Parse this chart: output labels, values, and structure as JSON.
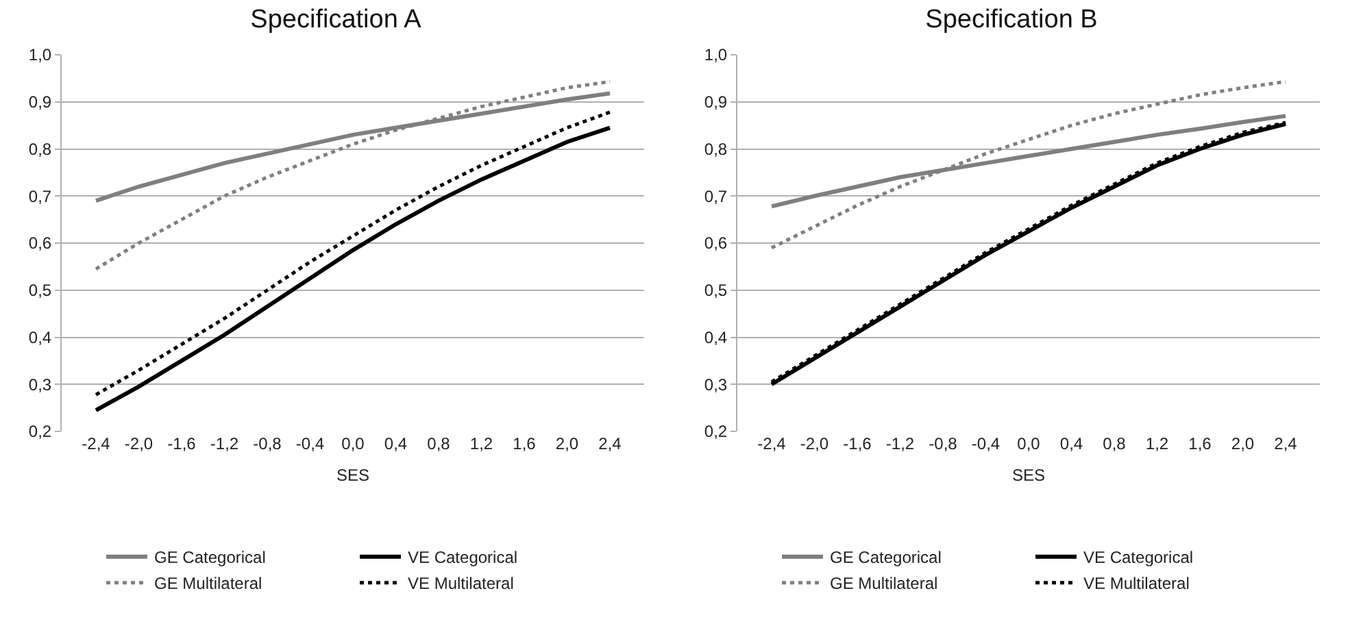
{
  "chart_data": [
    {
      "type": "line",
      "title": "Specification A",
      "xlabel": "SES",
      "categories": [
        "-2,4",
        "-2,0",
        "-1,6",
        "-1,2",
        "-0,8",
        "-0,4",
        "0,0",
        "0,4",
        "0,8",
        "1,2",
        "1,6",
        "2,0",
        "2,4"
      ],
      "series": [
        {
          "name": "GE Categorical",
          "color": "#7f7f7f",
          "line_style": "solid",
          "values": [
            0.69,
            0.72,
            0.745,
            0.77,
            0.79,
            0.81,
            0.83,
            0.845,
            0.86,
            0.875,
            0.89,
            0.905,
            0.918
          ]
        },
        {
          "name": "VE Categorical",
          "color": "#000000",
          "line_style": "solid",
          "values": [
            0.245,
            0.295,
            0.35,
            0.405,
            0.465,
            0.525,
            0.585,
            0.64,
            0.69,
            0.735,
            0.775,
            0.815,
            0.845
          ]
        },
        {
          "name": "GE Multilateral",
          "color": "#7f7f7f",
          "line_style": "dotted",
          "values": [
            0.545,
            0.6,
            0.65,
            0.7,
            0.74,
            0.775,
            0.81,
            0.84,
            0.865,
            0.89,
            0.91,
            0.93,
            0.943
          ]
        },
        {
          "name": "VE Multilateral",
          "color": "#000000",
          "line_style": "dotted",
          "values": [
            0.278,
            0.33,
            0.385,
            0.44,
            0.5,
            0.56,
            0.615,
            0.67,
            0.72,
            0.765,
            0.805,
            0.845,
            0.878
          ]
        }
      ],
      "ylim": [
        0.2,
        1.0
      ],
      "yticks": [
        {
          "value": 0.2,
          "label": "0,2"
        },
        {
          "value": 0.3,
          "label": "0,3"
        },
        {
          "value": 0.4,
          "label": "0,4"
        },
        {
          "value": 0.5,
          "label": "0,5"
        },
        {
          "value": 0.6,
          "label": "0,6"
        },
        {
          "value": 0.7,
          "label": "0,7"
        },
        {
          "value": 0.8,
          "label": "0,8"
        },
        {
          "value": 0.9,
          "label": "0,9"
        },
        {
          "value": 1.0,
          "label": "1,0"
        }
      ],
      "grid": "y",
      "legend": "bottom",
      "marker": "none"
    },
    {
      "type": "line",
      "title": "Specification B",
      "xlabel": "SES",
      "categories": [
        "-2,4",
        "-2,0",
        "-1,6",
        "-1,2",
        "-0,8",
        "-0,4",
        "0,0",
        "0,4",
        "0,8",
        "1,2",
        "1,6",
        "2,0",
        "2,4"
      ],
      "series": [
        {
          "name": "GE Categorical",
          "color": "#7f7f7f",
          "line_style": "solid",
          "values": [
            0.678,
            0.7,
            0.72,
            0.74,
            0.755,
            0.77,
            0.785,
            0.8,
            0.815,
            0.83,
            0.843,
            0.857,
            0.87
          ]
        },
        {
          "name": "VE Categorical",
          "color": "#000000",
          "line_style": "solid",
          "values": [
            0.3,
            0.355,
            0.41,
            0.465,
            0.52,
            0.575,
            0.625,
            0.675,
            0.72,
            0.765,
            0.8,
            0.83,
            0.853
          ]
        },
        {
          "name": "GE Multilateral",
          "color": "#7f7f7f",
          "line_style": "dotted",
          "values": [
            0.59,
            0.635,
            0.68,
            0.72,
            0.755,
            0.79,
            0.82,
            0.85,
            0.875,
            0.895,
            0.915,
            0.93,
            0.943
          ]
        },
        {
          "name": "VE Multilateral",
          "color": "#000000",
          "line_style": "dotted",
          "values": [
            0.305,
            0.36,
            0.415,
            0.47,
            0.525,
            0.58,
            0.63,
            0.68,
            0.725,
            0.77,
            0.805,
            0.835,
            0.856
          ]
        }
      ],
      "ylim": [
        0.2,
        1.0
      ],
      "yticks": [
        {
          "value": 0.2,
          "label": "0,2"
        },
        {
          "value": 0.3,
          "label": "0,3"
        },
        {
          "value": 0.4,
          "label": "0,4"
        },
        {
          "value": 0.5,
          "label": "0,5"
        },
        {
          "value": 0.6,
          "label": "0,6"
        },
        {
          "value": 0.7,
          "label": "0,7"
        },
        {
          "value": 0.8,
          "label": "0,8"
        },
        {
          "value": 0.9,
          "label": "0,9"
        },
        {
          "value": 1.0,
          "label": "1,0"
        }
      ],
      "grid": "y",
      "legend": "bottom",
      "marker": "none"
    }
  ]
}
